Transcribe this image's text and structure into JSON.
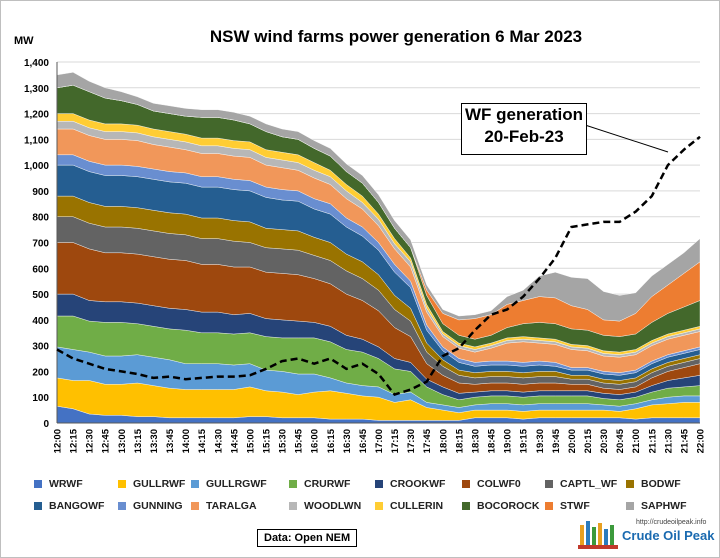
{
  "chart_data": {
    "type": "area",
    "title": "NSW wind farms power generation 6 Mar 2023",
    "ylabel": "MW",
    "ylim": [
      0,
      1400
    ],
    "yticks": [
      "0",
      "100",
      "200",
      "300",
      "400",
      "500",
      "600",
      "700",
      "800",
      "900",
      "1,000",
      "1,100",
      "1,200",
      "1,300",
      "1,400"
    ],
    "xticks": [
      "12:00",
      "12:15",
      "12:30",
      "12:45",
      "13:00",
      "13:15",
      "13:30",
      "13:45",
      "14:00",
      "14:15",
      "14:30",
      "14:45",
      "15:00",
      "15:15",
      "15:30",
      "15:45",
      "16:00",
      "16:15",
      "16:30",
      "16:45",
      "17:00",
      "17:15",
      "17:30",
      "17:45",
      "18:00",
      "18:15",
      "18:30",
      "18:45",
      "19:00",
      "19:15",
      "19:30",
      "19:45",
      "20:00",
      "20:15",
      "20:30",
      "20:45",
      "21:00",
      "21:15",
      "21:30",
      "21:45",
      "22:00"
    ],
    "stacked": true,
    "series": [
      {
        "name": "WRWF",
        "color": "#4472c4",
        "values": [
          65,
          55,
          35,
          30,
          30,
          25,
          25,
          20,
          20,
          20,
          20,
          20,
          25,
          25,
          20,
          20,
          20,
          15,
          15,
          15,
          10,
          10,
          10,
          10,
          10,
          10,
          20,
          20,
          20,
          15,
          20,
          20,
          20,
          20,
          20,
          20,
          15,
          20,
          20,
          20,
          20
        ]
      },
      {
        "name": "GULLRWF",
        "color": "#ffc000",
        "values": [
          110,
          110,
          130,
          120,
          120,
          130,
          120,
          115,
          110,
          110,
          110,
          110,
          115,
          100,
          100,
          90,
          100,
          110,
          100,
          90,
          90,
          70,
          80,
          50,
          40,
          30,
          30,
          30,
          30,
          30,
          30,
          30,
          30,
          30,
          30,
          25,
          40,
          50,
          55,
          60,
          60
        ]
      },
      {
        "name": "GULLRGWF",
        "color": "#5b9bd5",
        "values": [
          120,
          120,
          110,
          110,
          110,
          110,
          110,
          110,
          100,
          100,
          100,
          95,
          90,
          80,
          80,
          80,
          70,
          50,
          40,
          40,
          40,
          30,
          30,
          20,
          20,
          20,
          20,
          25,
          25,
          25,
          25,
          25,
          25,
          25,
          20,
          20,
          20,
          20,
          25,
          25,
          25
        ]
      },
      {
        "name": "CRURWF",
        "color": "#70ad47",
        "values": [
          120,
          130,
          120,
          130,
          130,
          120,
          120,
          120,
          130,
          120,
          120,
          120,
          120,
          130,
          130,
          140,
          140,
          140,
          130,
          130,
          110,
          100,
          80,
          60,
          40,
          30,
          30,
          30,
          30,
          30,
          30,
          30,
          30,
          30,
          25,
          25,
          25,
          30,
          35,
          35,
          40
        ]
      },
      {
        "name": "CROOKWF",
        "color": "#264478",
        "values": [
          85,
          85,
          80,
          80,
          80,
          80,
          80,
          80,
          80,
          80,
          80,
          75,
          75,
          70,
          70,
          65,
          60,
          60,
          55,
          50,
          45,
          40,
          35,
          30,
          30,
          25,
          20,
          20,
          20,
          20,
          20,
          20,
          20,
          20,
          20,
          20,
          20,
          25,
          30,
          35,
          40
        ]
      },
      {
        "name": "COLWF0",
        "color": "#9e480e",
        "values": [
          200,
          200,
          200,
          190,
          190,
          190,
          190,
          190,
          190,
          185,
          185,
          185,
          180,
          180,
          180,
          180,
          170,
          165,
          160,
          150,
          140,
          120,
          100,
          60,
          45,
          40,
          30,
          30,
          30,
          30,
          30,
          30,
          25,
          25,
          20,
          20,
          20,
          30,
          35,
          40,
          45
        ]
      },
      {
        "name": "CAPTL_WF",
        "color": "#636363",
        "values": [
          100,
          100,
          100,
          100,
          100,
          100,
          100,
          100,
          100,
          100,
          100,
          100,
          95,
          95,
          95,
          95,
          90,
          90,
          90,
          85,
          80,
          70,
          60,
          45,
          35,
          30,
          25,
          25,
          25,
          25,
          25,
          25,
          20,
          20,
          20,
          20,
          20,
          20,
          20,
          20,
          20
        ]
      },
      {
        "name": "BODWF",
        "color": "#997300",
        "values": [
          80,
          80,
          80,
          80,
          80,
          80,
          80,
          80,
          80,
          80,
          80,
          80,
          80,
          75,
          75,
          75,
          70,
          70,
          65,
          65,
          60,
          55,
          50,
          35,
          25,
          20,
          20,
          20,
          20,
          20,
          20,
          20,
          15,
          15,
          15,
          15,
          15,
          15,
          15,
          15,
          15
        ]
      },
      {
        "name": "BANGOWF",
        "color": "#255e91",
        "values": [
          120,
          120,
          120,
          120,
          120,
          120,
          120,
          120,
          120,
          120,
          120,
          120,
          120,
          120,
          115,
          115,
          110,
          110,
          105,
          100,
          95,
          90,
          80,
          50,
          35,
          30,
          25,
          25,
          25,
          25,
          25,
          20,
          20,
          20,
          20,
          20,
          20,
          20,
          20,
          20,
          20
        ]
      },
      {
        "name": "GUNNING",
        "color": "#698ed0",
        "values": [
          40,
          40,
          40,
          40,
          40,
          40,
          40,
          40,
          40,
          40,
          40,
          40,
          40,
          40,
          40,
          40,
          40,
          40,
          35,
          35,
          30,
          30,
          25,
          20,
          15,
          15,
          15,
          15,
          15,
          15,
          15,
          15,
          10,
          10,
          10,
          10,
          10,
          10,
          10,
          10,
          10
        ]
      },
      {
        "name": "TARALGA",
        "color": "#f1975a",
        "values": [
          100,
          100,
          100,
          100,
          100,
          100,
          95,
          95,
          90,
          90,
          90,
          90,
          90,
          85,
          85,
          80,
          80,
          75,
          75,
          70,
          65,
          60,
          55,
          50,
          40,
          40,
          40,
          50,
          70,
          80,
          70,
          70,
          70,
          65,
          60,
          60,
          60,
          60,
          60,
          60,
          60
        ]
      },
      {
        "name": "WOODLWN",
        "color": "#b7b7b7",
        "values": [
          30,
          30,
          30,
          30,
          30,
          30,
          30,
          30,
          30,
          30,
          30,
          30,
          30,
          30,
          30,
          30,
          30,
          30,
          30,
          25,
          25,
          20,
          20,
          15,
          10,
          10,
          10,
          10,
          10,
          10,
          10,
          10,
          10,
          10,
          10,
          10,
          10,
          10,
          10,
          10,
          10
        ]
      },
      {
        "name": "CULLERIN",
        "color": "#ffcd33",
        "values": [
          30,
          30,
          30,
          30,
          30,
          30,
          30,
          30,
          30,
          30,
          30,
          30,
          30,
          30,
          30,
          30,
          30,
          25,
          25,
          25,
          20,
          20,
          15,
          15,
          10,
          10,
          10,
          10,
          10,
          10,
          10,
          10,
          10,
          10,
          10,
          10,
          10,
          10,
          10,
          10,
          10
        ]
      },
      {
        "name": "BOCOROCK",
        "color": "#43682b",
        "values": [
          100,
          110,
          110,
          100,
          90,
          80,
          70,
          70,
          70,
          80,
          80,
          80,
          70,
          70,
          60,
          60,
          55,
          55,
          50,
          50,
          45,
          40,
          40,
          35,
          30,
          30,
          30,
          30,
          40,
          50,
          60,
          60,
          60,
          60,
          60,
          60,
          60,
          70,
          80,
          90,
          100
        ]
      },
      {
        "name": "STWF",
        "color": "#ed7d31",
        "values": [
          0,
          0,
          0,
          0,
          0,
          0,
          0,
          0,
          0,
          0,
          0,
          0,
          0,
          0,
          0,
          0,
          0,
          0,
          0,
          0,
          0,
          0,
          0,
          20,
          40,
          60,
          80,
          80,
          90,
          90,
          100,
          100,
          90,
          80,
          60,
          60,
          80,
          100,
          110,
          130,
          150
        ]
      },
      {
        "name": "SAPHWF",
        "color": "#a5a5a5",
        "values": [
          50,
          50,
          40,
          40,
          35,
          30,
          30,
          30,
          30,
          30,
          30,
          30,
          30,
          30,
          30,
          30,
          30,
          30,
          30,
          30,
          30,
          30,
          30,
          20,
          15,
          15,
          15,
          15,
          30,
          40,
          80,
          100,
          110,
          120,
          110,
          100,
          80,
          80,
          80,
          80,
          90
        ]
      }
    ],
    "comparison_line": {
      "label_line1": "WF generation",
      "label_line2": "20-Feb-23",
      "values": [
        285,
        250,
        230,
        210,
        200,
        190,
        175,
        180,
        170,
        175,
        180,
        180,
        185,
        210,
        240,
        250,
        230,
        250,
        210,
        230,
        190,
        110,
        130,
        160,
        260,
        290,
        360,
        420,
        440,
        490,
        560,
        640,
        760,
        770,
        780,
        780,
        820,
        880,
        1000,
        1060,
        1110
      ]
    }
  },
  "source": "Data: Open NEM",
  "brand": {
    "url": "http://crudeoilpeak.info",
    "name": "Crude Oil Peak"
  }
}
